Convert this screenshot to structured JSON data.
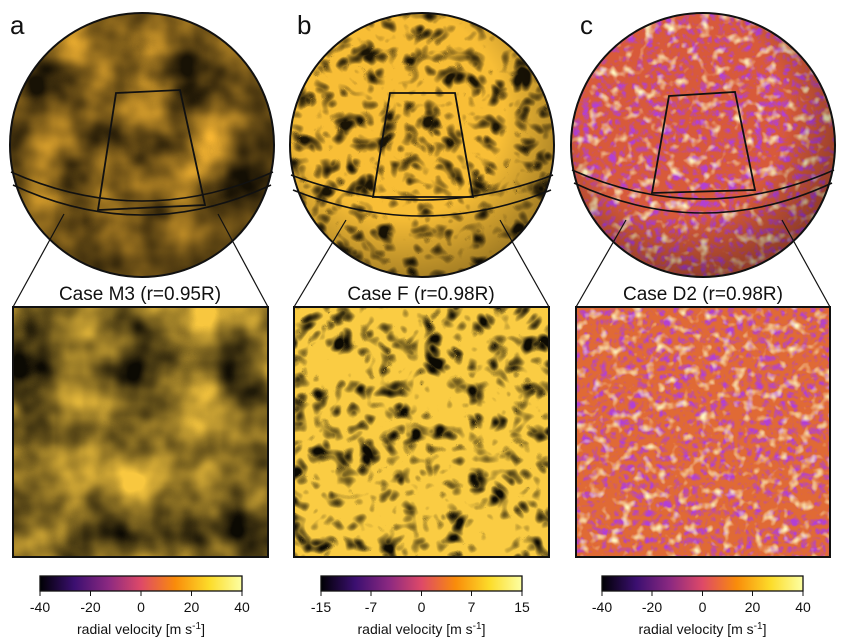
{
  "panels": [
    {
      "letter": "a",
      "title": "Case M3 (r=0.95R)",
      "colorbar": {
        "ticks": [
          "-40",
          "-20",
          "0",
          "20",
          "40"
        ],
        "label": "radial velocity [m s",
        "label_sup": "-1",
        "label_end": "]"
      }
    },
    {
      "letter": "b",
      "title": "Case F (r=0.98R)",
      "colorbar": {
        "ticks": [
          "-15",
          "-7",
          "0",
          "7",
          "15"
        ],
        "label": "radial velocity [m s",
        "label_sup": "-1",
        "label_end": "]"
      }
    },
    {
      "letter": "c",
      "title": "Case D2 (r=0.98R)",
      "colorbar": {
        "ticks": [
          "-40",
          "-20",
          "0",
          "20",
          "40"
        ],
        "label": "radial velocity [m s",
        "label_sup": "-1",
        "label_end": "]"
      }
    }
  ],
  "colormap": [
    "#000004",
    "#3b0f70",
    "#8c2981",
    "#de4968",
    "#f98c0a",
    "#fcdc2a",
    "#fcffa4"
  ]
}
